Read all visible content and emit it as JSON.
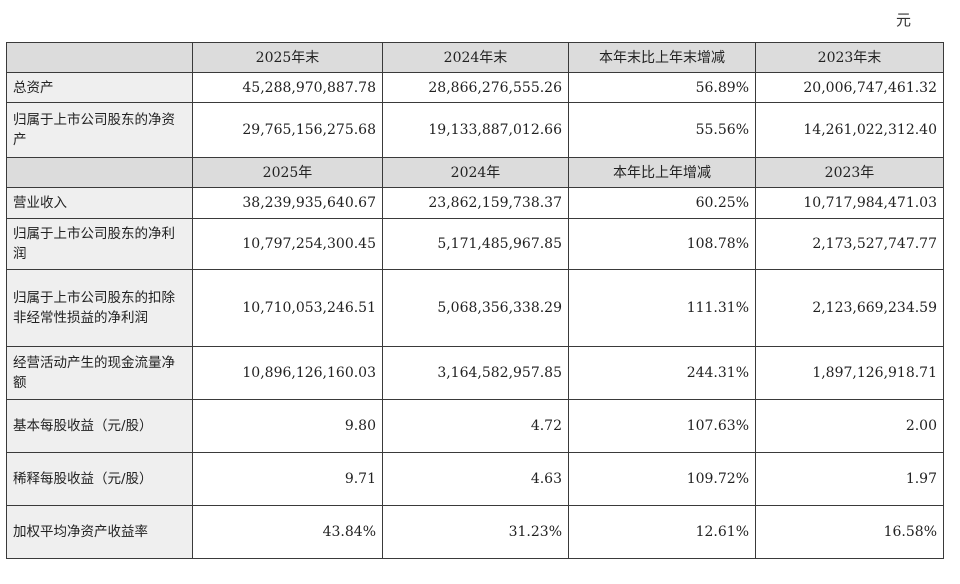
{
  "unit": "元",
  "header_end_of_year": [
    "2025年末",
    "2024年末",
    "本年末比上年末增减",
    "2023年末"
  ],
  "rows_balance": [
    {
      "label": "总资产",
      "v2025": "45,288,970,887.78",
      "v2024": "28,866,276,555.26",
      "change": "56.89%",
      "v2023": "20,006,747,461.32"
    },
    {
      "label": "归属于上市公司股东的净资产",
      "v2025": "29,765,156,275.68",
      "v2024": "19,133,887,012.66",
      "change": "55.56%",
      "v2023": "14,261,022,312.40"
    }
  ],
  "header_year": [
    "2025年",
    "2024年",
    "本年比上年增减",
    "2023年"
  ],
  "rows_income": [
    {
      "label": "营业收入",
      "v2025": "38,239,935,640.67",
      "v2024": "23,862,159,738.37",
      "change": "60.25%",
      "v2023": "10,717,984,471.03"
    },
    {
      "label": "归属于上市公司股东的净利润",
      "v2025": "10,797,254,300.45",
      "v2024": "5,171,485,967.85",
      "change": "108.78%",
      "v2023": "2,173,527,747.77"
    },
    {
      "label": "归属于上市公司股东的扣除非经常性损益的净利润",
      "v2025": "10,710,053,246.51",
      "v2024": "5,068,356,338.29",
      "change": "111.31%",
      "v2023": "2,123,669,234.59"
    },
    {
      "label": "经营活动产生的现金流量净额",
      "v2025": "10,896,126,160.03",
      "v2024": "3,164,582,957.85",
      "change": "244.31%",
      "v2023": "1,897,126,918.71"
    },
    {
      "label": "基本每股收益（元/股）",
      "v2025": "9.80",
      "v2024": "4.72",
      "change": "107.63%",
      "v2023": "2.00"
    },
    {
      "label": "稀释每股收益（元/股）",
      "v2025": "9.71",
      "v2024": "4.63",
      "change": "109.72%",
      "v2023": "1.97"
    },
    {
      "label": "加权平均净资产收益率",
      "v2025": "43.84%",
      "v2024": "31.23%",
      "change": "12.61%",
      "v2023": "16.58%"
    }
  ]
}
